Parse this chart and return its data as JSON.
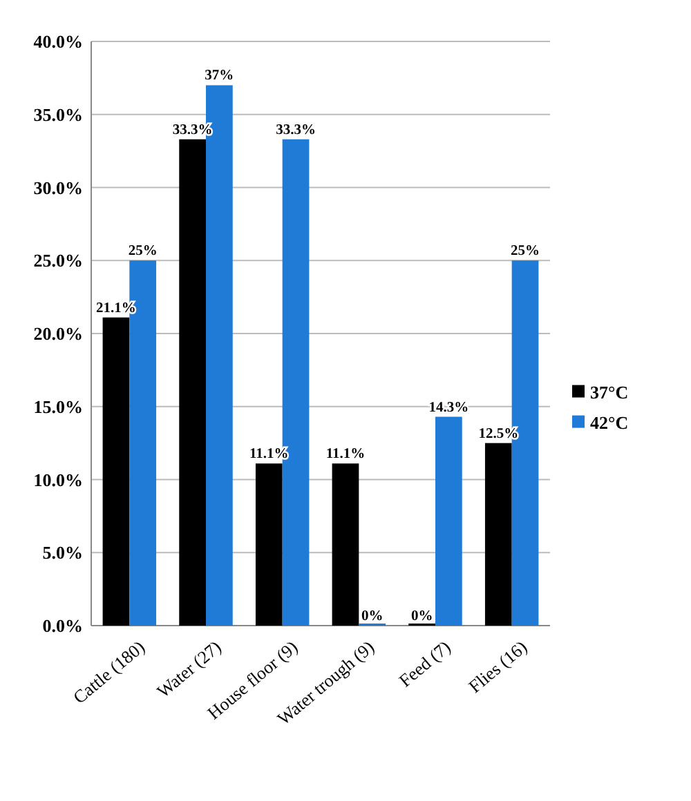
{
  "chart_data": {
    "type": "bar",
    "categories": [
      "Cattle (180)",
      "Water (27)",
      "House floor  (9)",
      "Water trough (9)",
      "Feed (7)",
      "Flies (16)"
    ],
    "series": [
      {
        "name": "37°C",
        "color": "#000000",
        "values": [
          21.1,
          33.3,
          11.1,
          11.1,
          0,
          12.5
        ],
        "value_labels": [
          "21.1%",
          "33.3%",
          "11.1%",
          "11.1%",
          "0%",
          "12.5%"
        ]
      },
      {
        "name": "42°C",
        "color": "#1f7bd6",
        "values": [
          25,
          37,
          33.3,
          0,
          14.3,
          25
        ],
        "value_labels": [
          "25%",
          "37%",
          "33.3%",
          "0%",
          "14.3%",
          "25%"
        ]
      }
    ],
    "ylim": [
      0,
      40
    ],
    "yticks": [
      {
        "value": 0,
        "label": "0.0%"
      },
      {
        "value": 5,
        "label": "5.0%"
      },
      {
        "value": 10,
        "label": "10.0%"
      },
      {
        "value": 15,
        "label": "15.0%"
      },
      {
        "value": 20,
        "label": "20.0%"
      },
      {
        "value": 25,
        "label": "25.0%"
      },
      {
        "value": 30,
        "label": "30.0%"
      },
      {
        "value": 35,
        "label": "35.0%"
      },
      {
        "value": 40,
        "label": "40.0%"
      }
    ],
    "grid": "y",
    "legend": "right"
  }
}
